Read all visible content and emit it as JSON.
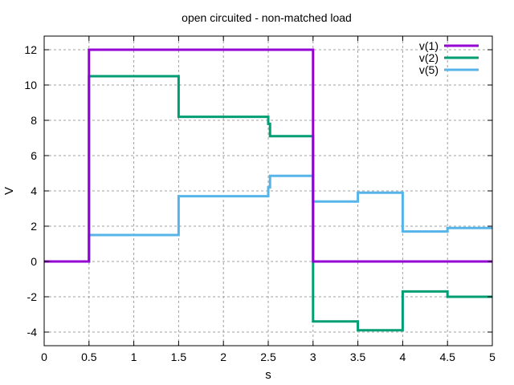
{
  "chart_data": {
    "type": "line",
    "style": "step",
    "title": "open circuited - non-matched load",
    "xlabel": "s",
    "ylabel": "V",
    "xlim": [
      0,
      5
    ],
    "ylim": [
      -4.8,
      12.8
    ],
    "grid": true,
    "legend_position": "top-right",
    "xticks": [
      0,
      0.5,
      1,
      1.5,
      2,
      2.5,
      3,
      3.5,
      4,
      4.5,
      5
    ],
    "xtick_labels": [
      "0",
      "0.5",
      "1",
      "1.5",
      "2",
      "2.5",
      "3",
      "3.5",
      "4",
      "4.5",
      "5"
    ],
    "yticks": [
      -4,
      -2,
      0,
      2,
      4,
      6,
      8,
      10,
      12
    ],
    "ytick_labels": [
      "-4",
      "-2",
      "0",
      "2",
      "4",
      "6",
      "8",
      "10",
      "12"
    ],
    "series": [
      {
        "name": "v(1)",
        "color": "#9400d3",
        "x": [
          0,
          0.5,
          0.5,
          3,
          3,
          5
        ],
        "y": [
          0,
          0,
          12,
          12,
          0,
          0
        ]
      },
      {
        "name": "v(2)",
        "color": "#009e73",
        "x": [
          0,
          0.5,
          0.5,
          1.5,
          1.5,
          2.5,
          2.5,
          2.52,
          2.52,
          3,
          3,
          3.5,
          3.5,
          4,
          4,
          4.5,
          4.5,
          5
        ],
        "y": [
          0,
          0,
          10.5,
          10.5,
          8.2,
          8.2,
          7.8,
          7.8,
          7.1,
          7.1,
          -3.4,
          -3.4,
          -3.9,
          -3.9,
          -1.7,
          -1.7,
          -2.0,
          -2.0
        ]
      },
      {
        "name": "v(5)",
        "color": "#56b4e9",
        "x": [
          0,
          0.5,
          0.5,
          1.5,
          1.5,
          2.5,
          2.5,
          2.52,
          2.52,
          3,
          3,
          3.5,
          3.5,
          4,
          4,
          4.5,
          4.5,
          5
        ],
        "y": [
          0,
          0,
          1.5,
          1.5,
          3.7,
          3.7,
          4.2,
          4.2,
          4.85,
          4.85,
          3.4,
          3.4,
          3.9,
          3.9,
          1.7,
          1.7,
          1.9,
          1.9
        ]
      }
    ]
  }
}
